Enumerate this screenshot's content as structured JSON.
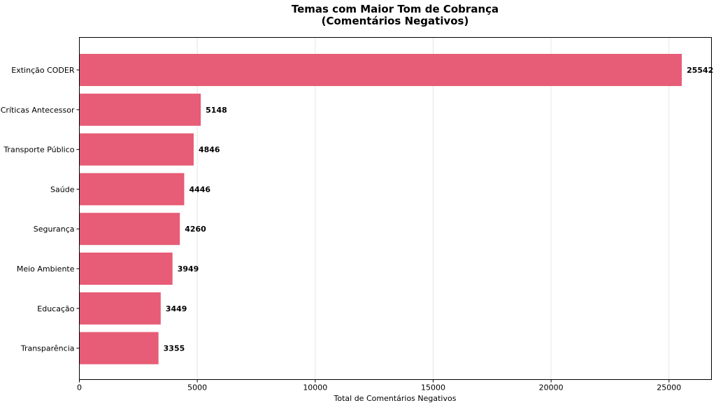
{
  "chart_data": {
    "type": "bar",
    "orientation": "horizontal",
    "title_line1": "Temas com Maior Tom de Cobrança",
    "title_line2": "(Comentários Negativos)",
    "xlabel": "Total de Comentários Negativos",
    "ylabel": "",
    "categories": [
      "Extinção CODER",
      "Críticas Antecessor",
      "Transporte Público",
      "Saúde",
      "Segurança",
      "Meio Ambiente",
      "Educação",
      "Transparência"
    ],
    "values": [
      25542,
      5148,
      4846,
      4446,
      4260,
      3949,
      3449,
      3355
    ],
    "data_labels": [
      "25542",
      "5148",
      "4846",
      "4446",
      "4260",
      "3949",
      "3449",
      "3355"
    ],
    "xlim": [
      0,
      26800
    ],
    "x_ticks": [
      0,
      5000,
      10000,
      15000,
      20000,
      25000
    ],
    "x_tick_labels": [
      "0",
      "5000",
      "10000",
      "15000",
      "20000",
      "25000"
    ],
    "grid": "vertical",
    "legend": "none",
    "bar_color": "#e75c76",
    "grid_color": "#e6e6e6"
  }
}
